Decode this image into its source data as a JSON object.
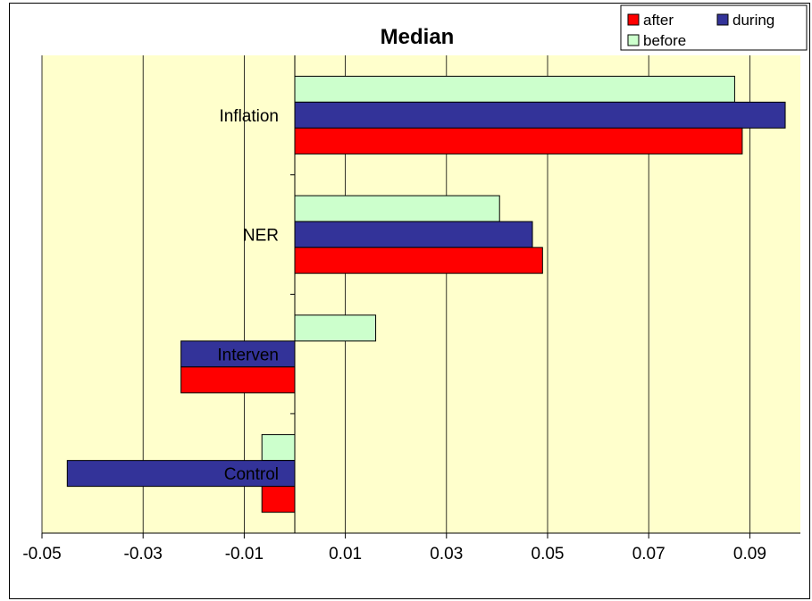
{
  "chart_data": {
    "type": "bar",
    "orientation": "horizontal",
    "title": "Median",
    "categories": [
      "Inflation",
      "NER",
      "Interven",
      "Control"
    ],
    "series": [
      {
        "name": "before",
        "color": "#ccffcc",
        "values": [
          0.087,
          0.0405,
          0.016,
          -0.0065
        ]
      },
      {
        "name": "during",
        "color": "#333399",
        "values": [
          0.097,
          0.047,
          -0.0225,
          -0.045
        ]
      },
      {
        "name": "after",
        "color": "#ff0000",
        "values": [
          0.0885,
          0.049,
          -0.0225,
          -0.0065
        ]
      }
    ],
    "xlim": [
      -0.05,
      0.1
    ],
    "xticks": [
      "-0.05",
      "-0.03",
      "-0.01",
      "0.01",
      "0.03",
      "0.05",
      "0.07",
      "0.09"
    ],
    "xtick_values": [
      -0.05,
      -0.03,
      -0.01,
      0.01,
      0.03,
      0.05,
      0.07,
      0.09
    ],
    "grid": true,
    "plot_background": "#ffffcc",
    "legend": {
      "placement": "top-right",
      "entries": [
        {
          "name": "after",
          "color": "#ff0000"
        },
        {
          "name": "during",
          "color": "#333399"
        },
        {
          "name": "before",
          "color": "#ccffcc"
        }
      ]
    }
  }
}
